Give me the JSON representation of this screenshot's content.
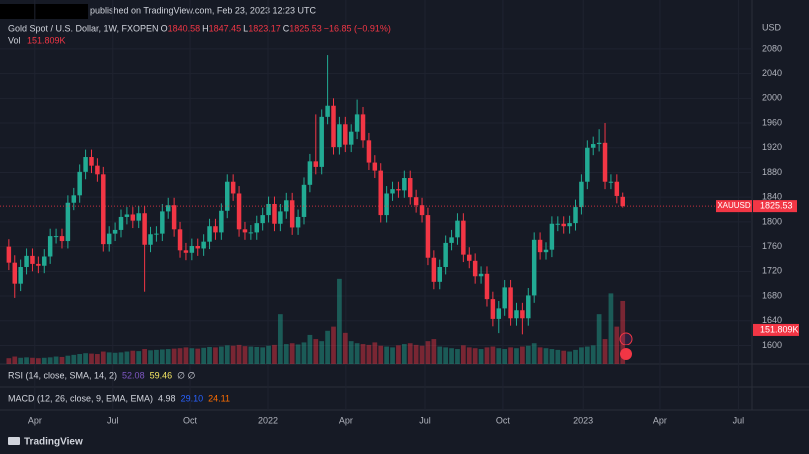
{
  "chart_data": {
    "type": "candlestick",
    "published": "published on TradingView.com, Feb 23, 2023 12:23 UTC",
    "title": "Gold Spot / U.S. Dollar, 1W, FXOPEN",
    "ohlc_letters": [
      "O",
      "H",
      "L",
      "C"
    ],
    "last_ohlc": [
      1840.58,
      1847.45,
      1823.17,
      1825.53
    ],
    "change_text": "−16.85 (−0.91%)",
    "volume_title": "Vol",
    "currency": "USD",
    "symbol": "XAUUSD",
    "brand": "TradingView",
    "up_color": "#22ab94",
    "down_color": "#f23645",
    "opens": [
      1760,
      1734,
      1700,
      1727,
      1745,
      1732,
      1729,
      1744,
      1777,
      1777,
      1769,
      1831,
      1843,
      1881,
      1905,
      1891,
      1877,
      1764,
      1781,
      1787,
      1808,
      1812,
      1802,
      1814,
      1763,
      1780,
      1781,
      1817,
      1827,
      1788,
      1754,
      1750,
      1761,
      1757,
      1768,
      1793,
      1783,
      1818,
      1865,
      1846,
      1788,
      1783,
      1783,
      1798,
      1811,
      1829,
      1797,
      1817,
      1835,
      1791,
      1808,
      1860,
      1898,
      1889,
      1970,
      1988,
      1921,
      1958,
      1925,
      1946,
      1974,
      1932,
      1896,
      1883,
      1811,
      1846,
      1853,
      1851,
      1871,
      1840,
      1827,
      1811,
      1742,
      1703,
      1727,
      1766,
      1775,
      1802,
      1747,
      1737,
      1712,
      1716,
      1675,
      1643,
      1660,
      1694,
      1644,
      1657,
      1644,
      1681,
      1771,
      1751,
      1755,
      1797,
      1797,
      1793,
      1798,
      1824,
      1865,
      1920,
      1926,
      1928,
      1865,
      1865,
      1840.58
    ],
    "highs": [
      1772,
      1746,
      1739,
      1757,
      1757,
      1744,
      1756,
      1789,
      1789,
      1789,
      1843,
      1855,
      1893,
      1917,
      1917,
      1903,
      1889,
      1793,
      1799,
      1820,
      1824,
      1824,
      1826,
      1826,
      1792,
      1793,
      1829,
      1839,
      1839,
      1800,
      1766,
      1773,
      1773,
      1780,
      1805,
      1805,
      1830,
      1877,
      1877,
      1858,
      1800,
      1795,
      1810,
      1823,
      1841,
      1841,
      1829,
      1847,
      1847,
      1820,
      1872,
      1910,
      1974,
      1982,
      2070,
      2000,
      1970,
      1970,
      1958,
      1998,
      1986,
      1944,
      1908,
      1895,
      1858,
      1865,
      1865,
      1883,
      1883,
      1852,
      1839,
      1823,
      1754,
      1739,
      1778,
      1787,
      1814,
      1814,
      1759,
      1749,
      1728,
      1728,
      1687,
      1672,
      1706,
      1706,
      1669,
      1669,
      1693,
      1783,
      1783,
      1767,
      1809,
      1809,
      1809,
      1810,
      1836,
      1877,
      1932,
      1938,
      1950,
      1960,
      1877,
      1877,
      1847.45
    ],
    "lows": [
      1722,
      1677,
      1688,
      1715,
      1720,
      1717,
      1717,
      1732,
      1765,
      1757,
      1757,
      1819,
      1831,
      1869,
      1879,
      1865,
      1752,
      1752,
      1769,
      1775,
      1796,
      1790,
      1790,
      1687,
      1751,
      1768,
      1769,
      1805,
      1776,
      1742,
      1738,
      1738,
      1745,
      1745,
      1756,
      1771,
      1771,
      1806,
      1834,
      1776,
      1771,
      1771,
      1771,
      1786,
      1799,
      1785,
      1785,
      1805,
      1779,
      1779,
      1796,
      1848,
      1877,
      1877,
      1958,
      1909,
      1909,
      1913,
      1913,
      1934,
      1920,
      1884,
      1871,
      1799,
      1799,
      1834,
      1839,
      1839,
      1828,
      1815,
      1799,
      1730,
      1691,
      1691,
      1715,
      1754,
      1763,
      1735,
      1725,
      1700,
      1700,
      1663,
      1631,
      1620,
      1648,
      1632,
      1632,
      1618,
      1632,
      1669,
      1739,
      1739,
      1743,
      1785,
      1781,
      1781,
      1786,
      1812,
      1853,
      1908,
      1914,
      1853,
      1853,
      1830,
      1823.17
    ],
    "closes": [
      1734,
      1700,
      1727,
      1745,
      1732,
      1729,
      1744,
      1777,
      1777,
      1769,
      1831,
      1843,
      1881,
      1905,
      1891,
      1877,
      1764,
      1781,
      1787,
      1808,
      1812,
      1802,
      1814,
      1763,
      1780,
      1781,
      1817,
      1827,
      1788,
      1754,
      1750,
      1761,
      1757,
      1768,
      1793,
      1783,
      1818,
      1865,
      1846,
      1788,
      1783,
      1783,
      1798,
      1811,
      1829,
      1797,
      1817,
      1835,
      1791,
      1808,
      1860,
      1898,
      1889,
      1970,
      1988,
      1921,
      1958,
      1925,
      1946,
      1974,
      1932,
      1896,
      1883,
      1811,
      1846,
      1853,
      1851,
      1871,
      1840,
      1827,
      1811,
      1742,
      1703,
      1727,
      1766,
      1775,
      1802,
      1747,
      1737,
      1712,
      1716,
      1675,
      1643,
      1660,
      1694,
      1644,
      1657,
      1644,
      1681,
      1771,
      1751,
      1755,
      1797,
      1797,
      1793,
      1798,
      1824,
      1865,
      1920,
      1926,
      1928,
      1865,
      1865,
      1842,
      1825.53
    ],
    "volumes": [
      14,
      18,
      15,
      16,
      15,
      14,
      15,
      16,
      18,
      17,
      20,
      22,
      24,
      26,
      25,
      24,
      30,
      28,
      27,
      28,
      30,
      32,
      31,
      36,
      33,
      34,
      35,
      36,
      37,
      38,
      40,
      38,
      37,
      39,
      41,
      40,
      42,
      45,
      44,
      46,
      43,
      42,
      41,
      40,
      44,
      46,
      120,
      48,
      50,
      47,
      52,
      70,
      60,
      55,
      80,
      90,
      205,
      75,
      55,
      50,
      48,
      46,
      52,
      44,
      42,
      40,
      45,
      48,
      50,
      46,
      44,
      55,
      60,
      42,
      40,
      38,
      36,
      45,
      40,
      38,
      36,
      40,
      42,
      38,
      36,
      40,
      38,
      42,
      44,
      50,
      40,
      38,
      36,
      34,
      32,
      30,
      34,
      40,
      42,
      45,
      120,
      60,
      170,
      90,
      151.809
    ],
    "volume_last_label": "151.809K",
    "ylim": [
      1570,
      2130
    ],
    "yticks": [
      1600,
      1640,
      1680,
      1720,
      1760,
      1800,
      1840,
      1880,
      1920,
      1960,
      2000,
      2040,
      2080
    ],
    "vlim": [
      0,
      833
    ],
    "xlim": [
      -1.5,
      125.9
    ],
    "xticks": [
      {
        "value": 4.4,
        "label": "Apr"
      },
      {
        "value": 17.6,
        "label": "Jul"
      },
      {
        "value": 30.7,
        "label": "Oct"
      },
      {
        "value": 43.9,
        "label": "2022"
      },
      {
        "value": 57.1,
        "label": "Apr"
      },
      {
        "value": 70.5,
        "label": "Jul"
      },
      {
        "value": 83.7,
        "label": "Oct"
      },
      {
        "value": 97.3,
        "label": "2023"
      },
      {
        "value": 110.3,
        "label": "Apr"
      },
      {
        "value": 123.6,
        "label": "Jul"
      }
    ],
    "grid": true,
    "indicators": [
      {
        "name": "RSI (14, close, SMA, 14, 2)",
        "values": [
          52.08,
          59.46
        ],
        "colors": [
          "#7e57c2",
          "#f5e663"
        ],
        "tail": "∅ ∅"
      },
      {
        "name": "MACD (12, 26, close, 9, EMA, EMA)",
        "values": [
          4.98,
          {
            "value": 29.1,
            "label": "29.10"
          },
          24.11
        ],
        "colors": [
          "#d1d4dc",
          "#2962ff",
          "#ff6d00"
        ]
      }
    ]
  }
}
